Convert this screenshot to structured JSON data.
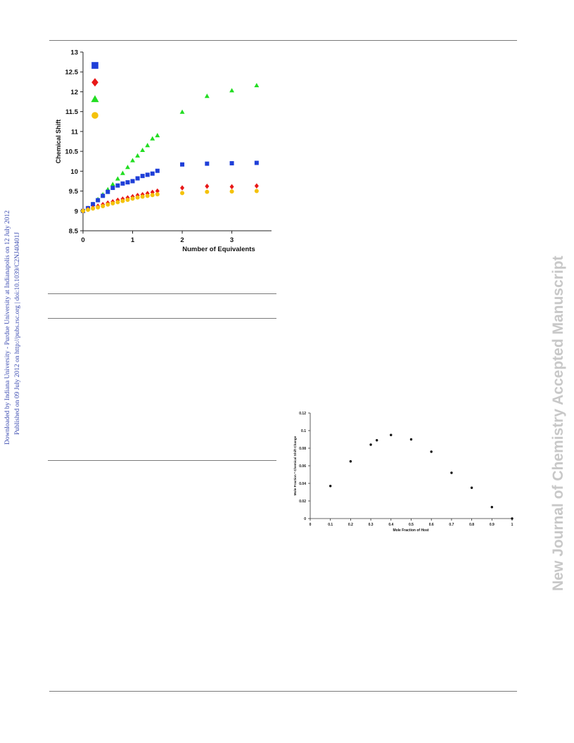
{
  "side_notes": {
    "line1": "Downloaded by Indiana University - Purdue University at Indianapolis on 12 July 2012",
    "line2": "Published on 09 July 2012 on http://pubs.rsc.org | doi:10.1039/C2NJ40401J"
  },
  "watermark": "New Journal of Chemistry Accepted Manuscript",
  "chart_data": [
    {
      "type": "scatter",
      "title": "",
      "xlabel": "Number of Equivalents",
      "ylabel": "Chemical Shift",
      "xlim": [
        0,
        3.8
      ],
      "ylim": [
        8.5,
        13
      ],
      "xticks": [
        "0",
        "1",
        "2",
        "3"
      ],
      "yticks": [
        "8.5",
        "9",
        "9.5",
        "10",
        "10.5",
        "11",
        "11.5",
        "12",
        "12.5",
        "13"
      ],
      "grid": false,
      "legend": "top-left",
      "series": [
        {
          "marker": "triangle",
          "color": "#22dd22",
          "x": [
            0,
            0.1,
            0.2,
            0.3,
            0.4,
            0.5,
            0.6,
            0.7,
            0.8,
            0.9,
            1.0,
            1.1,
            1.2,
            1.3,
            1.4,
            1.5,
            2.0,
            2.5,
            3.0,
            3.5
          ],
          "y": [
            9.0,
            9.07,
            9.17,
            9.29,
            9.41,
            9.54,
            9.67,
            9.81,
            9.95,
            10.1,
            10.27,
            10.39,
            10.53,
            10.65,
            10.82,
            10.9,
            11.49,
            11.89,
            12.03,
            12.16
          ]
        },
        {
          "marker": "square",
          "color": "#1f3fd8",
          "x": [
            0,
            0.1,
            0.2,
            0.3,
            0.4,
            0.5,
            0.6,
            0.7,
            0.8,
            0.9,
            1.0,
            1.1,
            1.2,
            1.3,
            1.4,
            1.5,
            2.0,
            2.5,
            3.0,
            3.5
          ],
          "y": [
            9.0,
            9.07,
            9.17,
            9.27,
            9.38,
            9.48,
            9.58,
            9.64,
            9.69,
            9.72,
            9.75,
            9.82,
            9.88,
            9.91,
            9.94,
            10.01,
            10.17,
            10.19,
            10.2,
            10.21
          ]
        },
        {
          "marker": "diamond",
          "color": "#e81818",
          "x": [
            0,
            0.1,
            0.2,
            0.3,
            0.4,
            0.5,
            0.6,
            0.7,
            0.8,
            0.9,
            1.0,
            1.1,
            1.2,
            1.3,
            1.4,
            1.5,
            2.0,
            2.5,
            3.0,
            3.5
          ],
          "y": [
            9.0,
            9.04,
            9.08,
            9.12,
            9.16,
            9.2,
            9.23,
            9.27,
            9.3,
            9.33,
            9.36,
            9.39,
            9.41,
            9.44,
            9.47,
            9.5,
            9.58,
            9.62,
            9.61,
            9.63
          ]
        },
        {
          "marker": "circle",
          "color": "#f4c20a",
          "x": [
            0,
            0.1,
            0.2,
            0.3,
            0.4,
            0.5,
            0.6,
            0.7,
            0.8,
            0.9,
            1.0,
            1.1,
            1.2,
            1.3,
            1.4,
            1.5,
            2.0,
            2.5,
            3.0,
            3.5
          ],
          "y": [
            9.0,
            9.03,
            9.06,
            9.09,
            9.12,
            9.16,
            9.19,
            9.22,
            9.25,
            9.28,
            9.31,
            9.34,
            9.36,
            9.38,
            9.4,
            9.42,
            9.45,
            9.48,
            9.49,
            9.5
          ]
        }
      ]
    },
    {
      "type": "scatter",
      "title": "",
      "xlabel": "Mole Fraction of Host",
      "ylabel": "Mole Fraction * Chemical Shift Change",
      "xlim": [
        0,
        1
      ],
      "ylim": [
        0,
        0.12
      ],
      "xticks": [
        "0",
        "0.1",
        "0.2",
        "0.3",
        "0.4",
        "0.5",
        "0.6",
        "0.7",
        "0.8",
        "0.9",
        "1"
      ],
      "yticks": [
        "0",
        "0.02",
        "0.04",
        "0.06",
        "0.08",
        "0.1",
        "0.12"
      ],
      "grid": false,
      "series": [
        {
          "color": "#111111",
          "x": [
            0.1,
            0.2,
            0.3,
            0.33,
            0.4,
            0.5,
            0.6,
            0.7,
            0.8,
            0.9,
            1.0
          ],
          "y": [
            0.037,
            0.065,
            0.084,
            0.089,
            0.095,
            0.09,
            0.076,
            0.052,
            0.035,
            0.013,
            0.0
          ]
        }
      ]
    }
  ]
}
